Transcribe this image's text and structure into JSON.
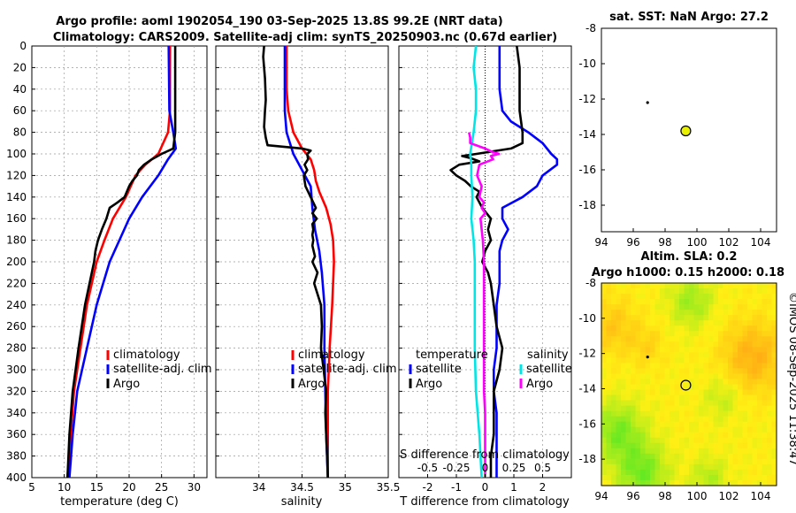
{
  "title": {
    "line1": "Argo profile: aoml 1902054_190 03-Sep-2025 13.8S 99.2E (NRT data)",
    "line2": "Climatology: CARS2009. Satellite-adj clim: synTS_20250903.nc (0.67d earlier)"
  },
  "colors": {
    "climatology": "#ff0000",
    "satellite": "#0000ff",
    "argo": "#000000",
    "sal_satellite": "#00e5e5",
    "sal_argo": "#ff00ff",
    "marker": "#e8f000"
  },
  "depth_axis": {
    "ticks": [
      0,
      20,
      40,
      60,
      80,
      100,
      120,
      140,
      160,
      180,
      200,
      220,
      240,
      260,
      280,
      300,
      320,
      340,
      360,
      380,
      400
    ],
    "range": [
      0,
      400
    ]
  },
  "chart_data": [
    {
      "id": "temperature",
      "type": "line",
      "xlabel": "temperature (deg C)",
      "xlim": [
        5,
        32
      ],
      "xticks": [
        5,
        10,
        15,
        20,
        25,
        30
      ],
      "ylim": [
        400,
        0
      ],
      "legend": [
        "climatology",
        "satellite-adj. clim",
        "Argo"
      ],
      "series": [
        {
          "name": "climatology",
          "color": "#ff0000",
          "depth": [
            0,
            60,
            80,
            100,
            110,
            120,
            140,
            160,
            180,
            200,
            240,
            280,
            320,
            360,
            400
          ],
          "values": [
            26.3,
            26.3,
            26.0,
            24.5,
            22.5,
            21.0,
            19.5,
            17.5,
            16.2,
            15.0,
            13.5,
            12.5,
            11.5,
            11.0,
            10.5
          ]
        },
        {
          "name": "satellite-adj. clim",
          "color": "#0000ff",
          "depth": [
            0,
            60,
            80,
            95,
            105,
            120,
            140,
            160,
            180,
            200,
            240,
            280,
            320,
            360,
            400
          ],
          "values": [
            26.1,
            26.2,
            26.8,
            27.2,
            26.0,
            24.5,
            22.0,
            20.0,
            18.5,
            17.0,
            15.0,
            13.5,
            12.0,
            11.3,
            10.8
          ]
        },
        {
          "name": "Argo",
          "color": "#000000",
          "depth": [
            0,
            60,
            80,
            95,
            100,
            105,
            110,
            115,
            120,
            125,
            130,
            140,
            145,
            150,
            160,
            170,
            180,
            190,
            200,
            240,
            280,
            320,
            360,
            400
          ],
          "values": [
            27.1,
            27.1,
            27.1,
            26.8,
            25.0,
            23.5,
            22.3,
            21.5,
            21.2,
            20.5,
            20.0,
            19.3,
            18.2,
            17.0,
            16.5,
            15.8,
            15.2,
            14.8,
            14.6,
            13.2,
            12.2,
            11.3,
            10.8,
            10.5
          ]
        }
      ]
    },
    {
      "id": "salinity",
      "type": "line",
      "xlabel": "salinity",
      "xlim": [
        33.5,
        35.5
      ],
      "xticks": [
        34,
        34.5,
        35,
        35.5
      ],
      "ylim": [
        400,
        0
      ],
      "legend": [
        "climatology",
        "satellite-adj. clim",
        "Argo"
      ],
      "series": [
        {
          "name": "climatology",
          "color": "#ff0000",
          "depth": [
            0,
            40,
            60,
            80,
            95,
            105,
            115,
            125,
            135,
            150,
            165,
            180,
            200,
            240,
            280,
            320,
            360,
            400
          ],
          "values": [
            34.32,
            34.32,
            34.34,
            34.4,
            34.5,
            34.6,
            34.64,
            34.66,
            34.7,
            34.78,
            34.83,
            34.86,
            34.87,
            34.85,
            34.82,
            34.8,
            34.8,
            34.8
          ]
        },
        {
          "name": "satellite-adj. clim",
          "color": "#0000ff",
          "depth": [
            0,
            40,
            60,
            80,
            100,
            115,
            130,
            150,
            170,
            190,
            210,
            240,
            280,
            320,
            360,
            400
          ],
          "values": [
            34.3,
            34.3,
            34.3,
            34.32,
            34.4,
            34.5,
            34.6,
            34.62,
            34.65,
            34.7,
            34.73,
            34.76,
            34.76,
            34.77,
            34.78,
            34.8
          ]
        },
        {
          "name": "Argo",
          "color": "#000000",
          "depth": [
            0,
            10,
            30,
            50,
            60,
            75,
            85,
            92,
            95,
            97,
            100,
            105,
            110,
            115,
            120,
            130,
            140,
            150,
            155,
            160,
            165,
            170,
            175,
            180,
            185,
            195,
            200,
            210,
            220,
            240,
            260,
            280,
            300,
            320,
            340,
            360,
            380,
            400
          ],
          "values": [
            34.06,
            34.05,
            34.07,
            34.08,
            34.07,
            34.06,
            34.08,
            34.1,
            34.5,
            34.6,
            34.56,
            34.57,
            34.53,
            34.56,
            34.52,
            34.54,
            34.6,
            34.66,
            34.62,
            34.67,
            34.62,
            34.63,
            34.62,
            34.63,
            34.62,
            34.65,
            34.62,
            34.68,
            34.64,
            34.72,
            34.73,
            34.72,
            34.75,
            34.78,
            34.77,
            34.78,
            34.79,
            34.8
          ]
        }
      ]
    },
    {
      "id": "difference",
      "type": "line",
      "xlabel": "T difference from climatology",
      "xlabel_top": "S difference from climatology",
      "xlim": [
        -3,
        3
      ],
      "xticks": [
        -2,
        -1,
        0,
        1,
        2
      ],
      "xticks_top": [
        "-0.5",
        "-0.25",
        "0",
        "0.25",
        "0.5"
      ],
      "ylim": [
        400,
        0
      ],
      "legend_temperature": {
        "title": "temperature",
        "items": [
          "satellite",
          "Argo"
        ]
      },
      "legend_salinity": {
        "title": "salinity",
        "items": [
          "satellite",
          "Argo"
        ]
      },
      "series": [
        {
          "name": "T satellite",
          "color": "#0000ff",
          "depth": [
            0,
            20,
            40,
            60,
            70,
            80,
            90,
            100,
            105,
            110,
            120,
            130,
            140,
            150,
            160,
            170,
            180,
            190,
            200,
            220,
            240,
            260,
            280,
            300,
            320,
            340,
            360,
            400
          ],
          "values": [
            0.5,
            0.5,
            0.5,
            0.6,
            0.9,
            1.5,
            2.0,
            2.3,
            2.5,
            2.5,
            2.0,
            1.8,
            1.3,
            0.6,
            0.6,
            0.8,
            0.6,
            0.5,
            0.5,
            0.5,
            0.4,
            0.4,
            0.4,
            0.3,
            0.3,
            0.4,
            0.4,
            0.4
          ]
        },
        {
          "name": "T Argo",
          "color": "#000000",
          "depth": [
            0,
            20,
            40,
            60,
            80,
            90,
            95,
            100,
            102,
            104,
            107,
            110,
            115,
            120,
            125,
            130,
            135,
            140,
            150,
            160,
            170,
            180,
            190,
            200,
            210,
            220,
            240,
            260,
            280,
            300,
            320,
            340,
            360,
            380,
            400
          ],
          "values": [
            1.1,
            1.2,
            1.2,
            1.2,
            1.3,
            1.3,
            0.9,
            -0.3,
            -0.8,
            -0.5,
            -0.2,
            -0.9,
            -1.2,
            -1.0,
            -0.7,
            -0.5,
            -0.2,
            -0.3,
            -0.1,
            0.2,
            0.1,
            0.2,
            0.0,
            -0.1,
            0.1,
            0.2,
            0.3,
            0.4,
            0.6,
            0.5,
            0.3,
            0.3,
            0.3,
            0.2,
            0.2
          ]
        },
        {
          "name": "S satellite",
          "color": "#00e5e5",
          "depth": [
            0,
            20,
            40,
            60,
            80,
            100,
            110,
            120,
            140,
            160,
            180,
            200,
            240,
            280,
            320,
            360,
            400
          ],
          "values": [
            -0.08,
            -0.1,
            -0.08,
            -0.08,
            -0.1,
            -0.13,
            -0.12,
            -0.12,
            -0.11,
            -0.12,
            -0.1,
            -0.09,
            -0.09,
            -0.09,
            -0.08,
            -0.05,
            -0.03
          ]
        },
        {
          "name": "S Argo",
          "color": "#ff00ff",
          "depth": [
            80,
            85,
            90,
            95,
            98,
            100,
            102,
            105,
            110,
            120,
            130,
            140,
            145,
            150,
            155,
            160,
            180,
            200,
            220,
            240,
            260,
            280,
            300,
            320,
            340,
            360,
            380,
            400
          ],
          "values": [
            -0.14,
            -0.13,
            -0.13,
            0.0,
            0.06,
            0.12,
            0.05,
            0.07,
            -0.05,
            -0.07,
            -0.03,
            -0.05,
            -0.01,
            -0.03,
            0.0,
            -0.04,
            -0.02,
            -0.01,
            -0.01,
            -0.01,
            -0.01,
            -0.01,
            -0.01,
            -0.01,
            0.0,
            0.0,
            0.0,
            0.0
          ]
        }
      ]
    },
    {
      "id": "sst-map",
      "type": "scatter",
      "title": "sat. SST: NaN Argo: 27.2",
      "xlim": [
        94,
        105
      ],
      "ylim": [
        -19.5,
        -8
      ],
      "xticks": [
        94,
        96,
        98,
        100,
        102,
        104
      ],
      "yticks": [
        -8,
        -10,
        -12,
        -14,
        -16,
        -18
      ],
      "points": [
        {
          "x": 96.9,
          "y": -12.2,
          "kind": "dot"
        },
        {
          "x": 99.3,
          "y": -13.8,
          "kind": "argo-float"
        }
      ]
    },
    {
      "id": "sla-map",
      "type": "heatmap",
      "title_line1": "Altim. SLA: 0.2",
      "title_line2": "Argo h1000: 0.15 h2000: 0.18",
      "xlim": [
        94,
        105
      ],
      "ylim": [
        -19.5,
        -8
      ],
      "xticks": [
        94,
        96,
        98,
        100,
        102,
        104
      ],
      "yticks": [
        -8,
        -10,
        -12,
        -14,
        -16,
        -18
      ],
      "points": [
        {
          "x": 96.9,
          "y": -12.2,
          "kind": "dot"
        },
        {
          "x": 99.3,
          "y": -13.8,
          "kind": "argo-float"
        }
      ]
    }
  ],
  "legend_labels": {
    "climatology": "climatology",
    "satellite_clim": "satellite-adj. clim",
    "argo": "Argo",
    "temperature": "temperature",
    "salinity": "salinity",
    "satellite": "satellite"
  },
  "watermark": "©IMOS 08-Sep-2025 11:38:47"
}
